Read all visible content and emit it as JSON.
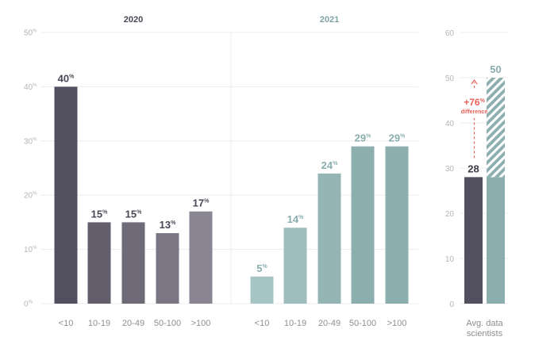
{
  "chart_data": [
    {
      "type": "bar",
      "title": "2020",
      "categories": [
        "<10",
        "10-19",
        "20-49",
        "50-100",
        ">100"
      ],
      "values": [
        40,
        15,
        15,
        13,
        17
      ],
      "value_suffix": "%",
      "ylim": [
        0,
        50
      ],
      "yticks": [
        0,
        10,
        20,
        30,
        40,
        50
      ],
      "grid": true,
      "colors": [
        "#524f5e",
        "#625e6c",
        "#6e6a78",
        "#7a7684",
        "#8a8593"
      ]
    },
    {
      "type": "bar",
      "title": "2021",
      "categories": [
        "<10",
        "10-19",
        "20-49",
        "50-100",
        ">100"
      ],
      "values": [
        5,
        14,
        24,
        29,
        29
      ],
      "value_suffix": "%",
      "ylim": [
        0,
        50
      ],
      "grid": true,
      "colors": [
        "#a7c4c4",
        "#9fbdbd",
        "#95b5b5",
        "#8daeae",
        "#8daeae"
      ]
    },
    {
      "type": "bar",
      "categories": [
        "Avg. data scientists"
      ],
      "series": [
        {
          "values": [
            28
          ],
          "color": "#524f5e"
        },
        {
          "values": [
            50
          ],
          "color": "#8daeae"
        }
      ],
      "ylim": [
        0,
        60
      ],
      "yticks": [
        0,
        10,
        20,
        30,
        40,
        50,
        60
      ],
      "annotation": {
        "value": "+76%",
        "label": "difference",
        "color": "#e8605a"
      }
    }
  ],
  "labels": {
    "avg_line1": "Avg. data",
    "avg_line2": "scientists",
    "ann_number": "+76",
    "ann_unit": "%",
    "ann_word": "difference"
  },
  "colors": {
    "grid": "#ececec",
    "tick": "#b5b5b5",
    "title_2020": "#4a4656",
    "title_2021": "#7fa3a3",
    "label_2020": "#4a4656",
    "label_2021": "#89aeae",
    "label_avg_dark": "#3e3b47",
    "label_avg_teal": "#89aeae",
    "accent": "#e8605a"
  }
}
